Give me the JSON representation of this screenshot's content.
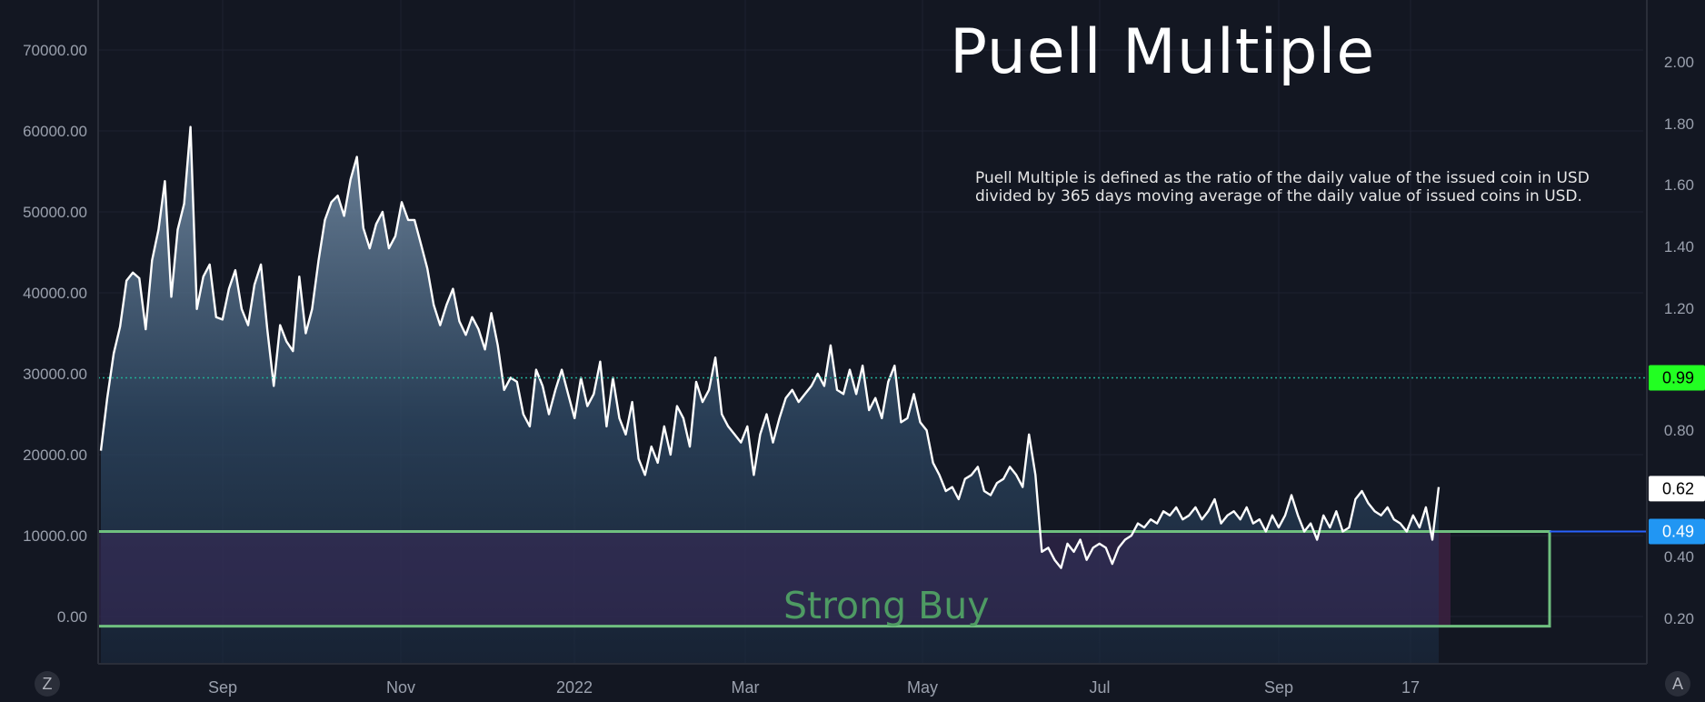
{
  "chart_data": {
    "type": "area",
    "title": "Puell Multiple",
    "description": "Puell Multiple is defined as the ratio of the daily value of the issued coin in USD divided by 365 days moving average of the daily value of issued coins in USD.",
    "x_tick_labels": [
      "Sep",
      "Nov",
      "2022",
      "Mar",
      "May",
      "Jul",
      "Sep",
      "17"
    ],
    "left_axis": {
      "ticks": [
        "70000.00",
        "60000.00",
        "50000.00",
        "40000.00",
        "30000.00",
        "20000.00",
        "10000.00",
        "0.00"
      ],
      "ylim": [
        -6000,
        76000
      ]
    },
    "right_axis": {
      "ticks": [
        "2.00",
        "1.80",
        "1.60",
        "1.40",
        "1.20",
        "0.80",
        "0.40",
        "0.20"
      ]
    },
    "series": [
      {
        "values": [
          20500,
          27000,
          32500,
          35800,
          41500,
          42500,
          41800,
          35500,
          44000,
          47800,
          53800,
          39500,
          47800,
          51000,
          60500,
          38000,
          42000,
          43500,
          37000,
          36700,
          40500,
          42800,
          38000,
          36000,
          41000,
          43500,
          35500,
          28500,
          36000,
          34000,
          32800,
          42000,
          35000,
          38000,
          44000,
          49000,
          51200,
          52000,
          49500,
          54000,
          56800,
          48000,
          45500,
          48500,
          50000,
          45500,
          47000,
          51200,
          49000,
          49000,
          46000,
          43000,
          38500,
          36000,
          38500,
          40500,
          36500,
          34800,
          37000,
          35500,
          33000,
          37500,
          33500,
          28000,
          29500,
          29000,
          25000,
          23500,
          30500,
          28500,
          25000,
          28000,
          30500,
          27500,
          24500,
          29500,
          26000,
          27500,
          31500,
          23500,
          29500,
          24500,
          22500,
          26500,
          19500,
          17500,
          21000,
          19000,
          23500,
          20000,
          26000,
          24500,
          21000,
          29000,
          26500,
          28000,
          32000,
          25000,
          23500,
          22500,
          21500,
          23500,
          17500,
          22500,
          25000,
          21500,
          24500,
          27000,
          28000,
          26500,
          27500,
          28500,
          30000,
          28500,
          33500,
          28000,
          27500,
          30500,
          27500,
          31000,
          25500,
          27000,
          24500,
          29000,
          31000,
          24000,
          24500,
          27500,
          24000,
          23000,
          19000,
          17500,
          15500,
          16000,
          14500,
          17000,
          17500,
          18500,
          15500,
          15000,
          16500,
          17000,
          18500,
          17500,
          16000,
          22500,
          17500,
          8000,
          8500,
          7000,
          6000,
          9000,
          8000,
          9500,
          7000,
          8500,
          9000,
          8500,
          6500,
          8500,
          9500,
          10000,
          11500,
          11000,
          12000,
          11500,
          13000,
          12500,
          13500,
          12000,
          12500,
          13500,
          12000,
          13000,
          14500,
          11500,
          12500,
          13000,
          12000,
          13500,
          11500,
          12000,
          10500,
          12500,
          11000,
          12500,
          15000,
          12500,
          10500,
          11500,
          9500,
          12500,
          11000,
          13000,
          10500,
          11000,
          14500,
          15500,
          14000,
          13000,
          12500,
          13500,
          12000,
          11500,
          10500,
          12500,
          11000,
          13500,
          9500,
          16000
        ]
      }
    ],
    "reference_lines": [
      {
        "label": "0.99",
        "level": 29500,
        "color": "#22ab94",
        "label_bg": "#22ff22",
        "label_fg": "#000000",
        "style": "dotted"
      },
      {
        "label": "0.62",
        "level": 15800,
        "color": "#ffffff",
        "label_bg": "#ffffff",
        "label_fg": "#000000",
        "style": "none"
      },
      {
        "label": "0.49",
        "level": 10500,
        "color": "#2962ff",
        "label_bg": "#2196f3",
        "label_fg": "#ffffff",
        "style": "solid"
      }
    ],
    "zones": [
      {
        "label": "Strong Buy",
        "from": -1200,
        "to": 10500,
        "color": "#4e9a63"
      }
    ]
  },
  "ui": {
    "left_corner_button": "Z",
    "right_corner_button": "A"
  },
  "colors": {
    "background": "#131722",
    "line": "#ffffff",
    "zone_fill": "#3a2a5a",
    "zone_border": "#6fbf7f"
  }
}
